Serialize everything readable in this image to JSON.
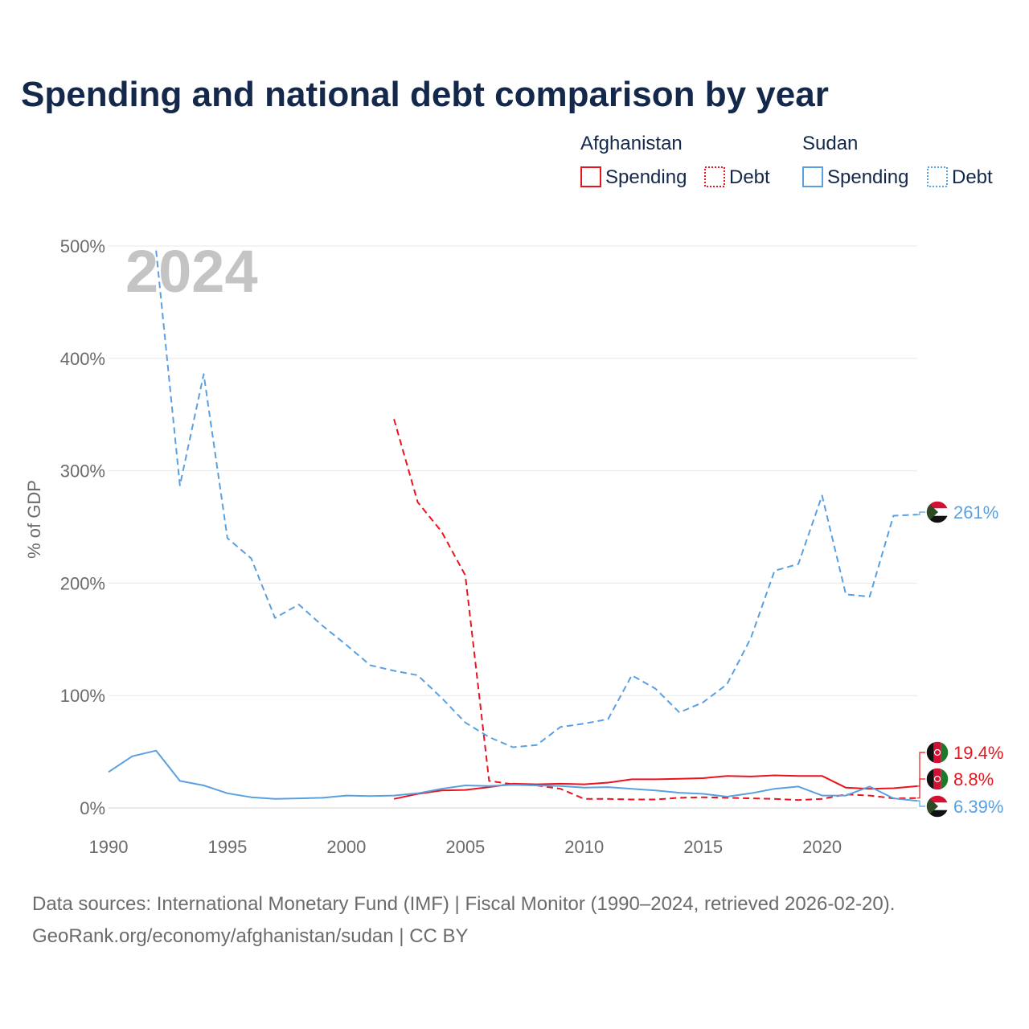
{
  "title": "Spending and national debt comparison by year",
  "year_label": "2024",
  "legend": {
    "groups": [
      {
        "name": "Afghanistan",
        "color": "#e8141e",
        "items": [
          "Spending",
          "Debt"
        ]
      },
      {
        "name": "Sudan",
        "color": "#5aa0e0",
        "items": [
          "Spending",
          "Debt"
        ]
      }
    ]
  },
  "source": {
    "line1": "Data sources: International Monetary Fund (IMF) | Fiscal Monitor (1990–2024, retrieved 2026-02-20).",
    "line2": "GeoRank.org/economy/afghanistan/sudan | CC BY"
  },
  "end_labels": [
    {
      "text": "261%",
      "country": "sudan",
      "color": "#5aa0e0",
      "value": 261
    },
    {
      "text": "19.4%",
      "country": "afghanistan",
      "color": "#e8141e",
      "value": 19.4
    },
    {
      "text": "8.8%",
      "country": "afghanistan",
      "color": "#e8141e",
      "value": 8.8
    },
    {
      "text": "6.39%",
      "country": "sudan",
      "color": "#5aa0e0",
      "value": 6.39
    }
  ],
  "chart_data": {
    "type": "line",
    "title": "Spending and national debt comparison by year",
    "xlabel": "",
    "ylabel": "% of GDP",
    "xlim": [
      1990,
      2024
    ],
    "ylim": [
      0,
      500
    ],
    "x_ticks": [
      "1990",
      "1995",
      "2000",
      "2005",
      "2010",
      "2015",
      "2020"
    ],
    "y_ticks": [
      "0%",
      "100%",
      "200%",
      "300%",
      "400%",
      "500%"
    ],
    "grid": true,
    "series": [
      {
        "name": "Afghanistan Spending",
        "country": "Afghanistan",
        "metric": "Spending",
        "color": "#e8141e",
        "dash": "solid",
        "x": [
          2002,
          2003,
          2004,
          2005,
          2006,
          2007,
          2008,
          2009,
          2010,
          2011,
          2012,
          2013,
          2014,
          2015,
          2016,
          2017,
          2018,
          2019,
          2020,
          2021,
          2022,
          2023,
          2024
        ],
        "values": [
          8,
          12.5,
          15.5,
          16,
          18.5,
          21.5,
          21,
          21.5,
          21,
          22.5,
          25.5,
          25.5,
          26,
          26.5,
          28.5,
          28,
          29,
          28.5,
          28.5,
          18,
          17,
          17.5,
          19.4
        ]
      },
      {
        "name": "Afghanistan Debt",
        "country": "Afghanistan",
        "metric": "Debt",
        "color": "#e8141e",
        "dash": "dashed",
        "x": [
          2002,
          2003,
          2004,
          2005,
          2006,
          2007,
          2008,
          2009,
          2010,
          2011,
          2012,
          2013,
          2014,
          2015,
          2016,
          2017,
          2018,
          2019,
          2020,
          2021,
          2022,
          2023,
          2024
        ],
        "values": [
          346,
          272,
          246,
          207,
          24,
          21,
          20,
          17,
          8,
          8,
          7.5,
          7.5,
          9,
          9.5,
          9,
          8.5,
          8,
          7,
          8,
          12,
          11,
          8.5,
          8.8
        ]
      },
      {
        "name": "Sudan Spending",
        "country": "Sudan",
        "metric": "Spending",
        "color": "#5aa0e0",
        "dash": "solid",
        "x": [
          1990,
          1991,
          1992,
          1993,
          1994,
          1995,
          1996,
          1997,
          1998,
          1999,
          2000,
          2001,
          2002,
          2003,
          2004,
          2005,
          2006,
          2007,
          2008,
          2009,
          2010,
          2011,
          2012,
          2013,
          2014,
          2015,
          2016,
          2017,
          2018,
          2019,
          2020,
          2021,
          2022,
          2023,
          2024
        ],
        "values": [
          32,
          46,
          51,
          24,
          20,
          13,
          9.5,
          8,
          8.5,
          9,
          11,
          10.5,
          11,
          13,
          17,
          20,
          19.5,
          20.5,
          20,
          19.5,
          18,
          18.5,
          17,
          15.5,
          13.5,
          12.5,
          10,
          13,
          17,
          19,
          11,
          11,
          19,
          8.5,
          6.39
        ]
      },
      {
        "name": "Sudan Debt",
        "country": "Sudan",
        "metric": "Debt",
        "color": "#5aa0e0",
        "dash": "dashed",
        "x": [
          1990,
          1991,
          1992,
          1993,
          1994,
          1995,
          1996,
          1997,
          1998,
          1999,
          2000,
          2001,
          2002,
          2003,
          2004,
          2005,
          2006,
          2007,
          2008,
          2009,
          2010,
          2011,
          2012,
          2013,
          2014,
          2015,
          2016,
          2017,
          2018,
          2019,
          2020,
          2021,
          2022,
          2023,
          2024
        ],
        "values": [
          null,
          null,
          496,
          287,
          386,
          240,
          222,
          169,
          181,
          162,
          145,
          127,
          122,
          118,
          98,
          76,
          63,
          54,
          56,
          72,
          75,
          79,
          118,
          106,
          85,
          94,
          110,
          151,
          211,
          217,
          278,
          190,
          188,
          260,
          261
        ]
      }
    ]
  }
}
